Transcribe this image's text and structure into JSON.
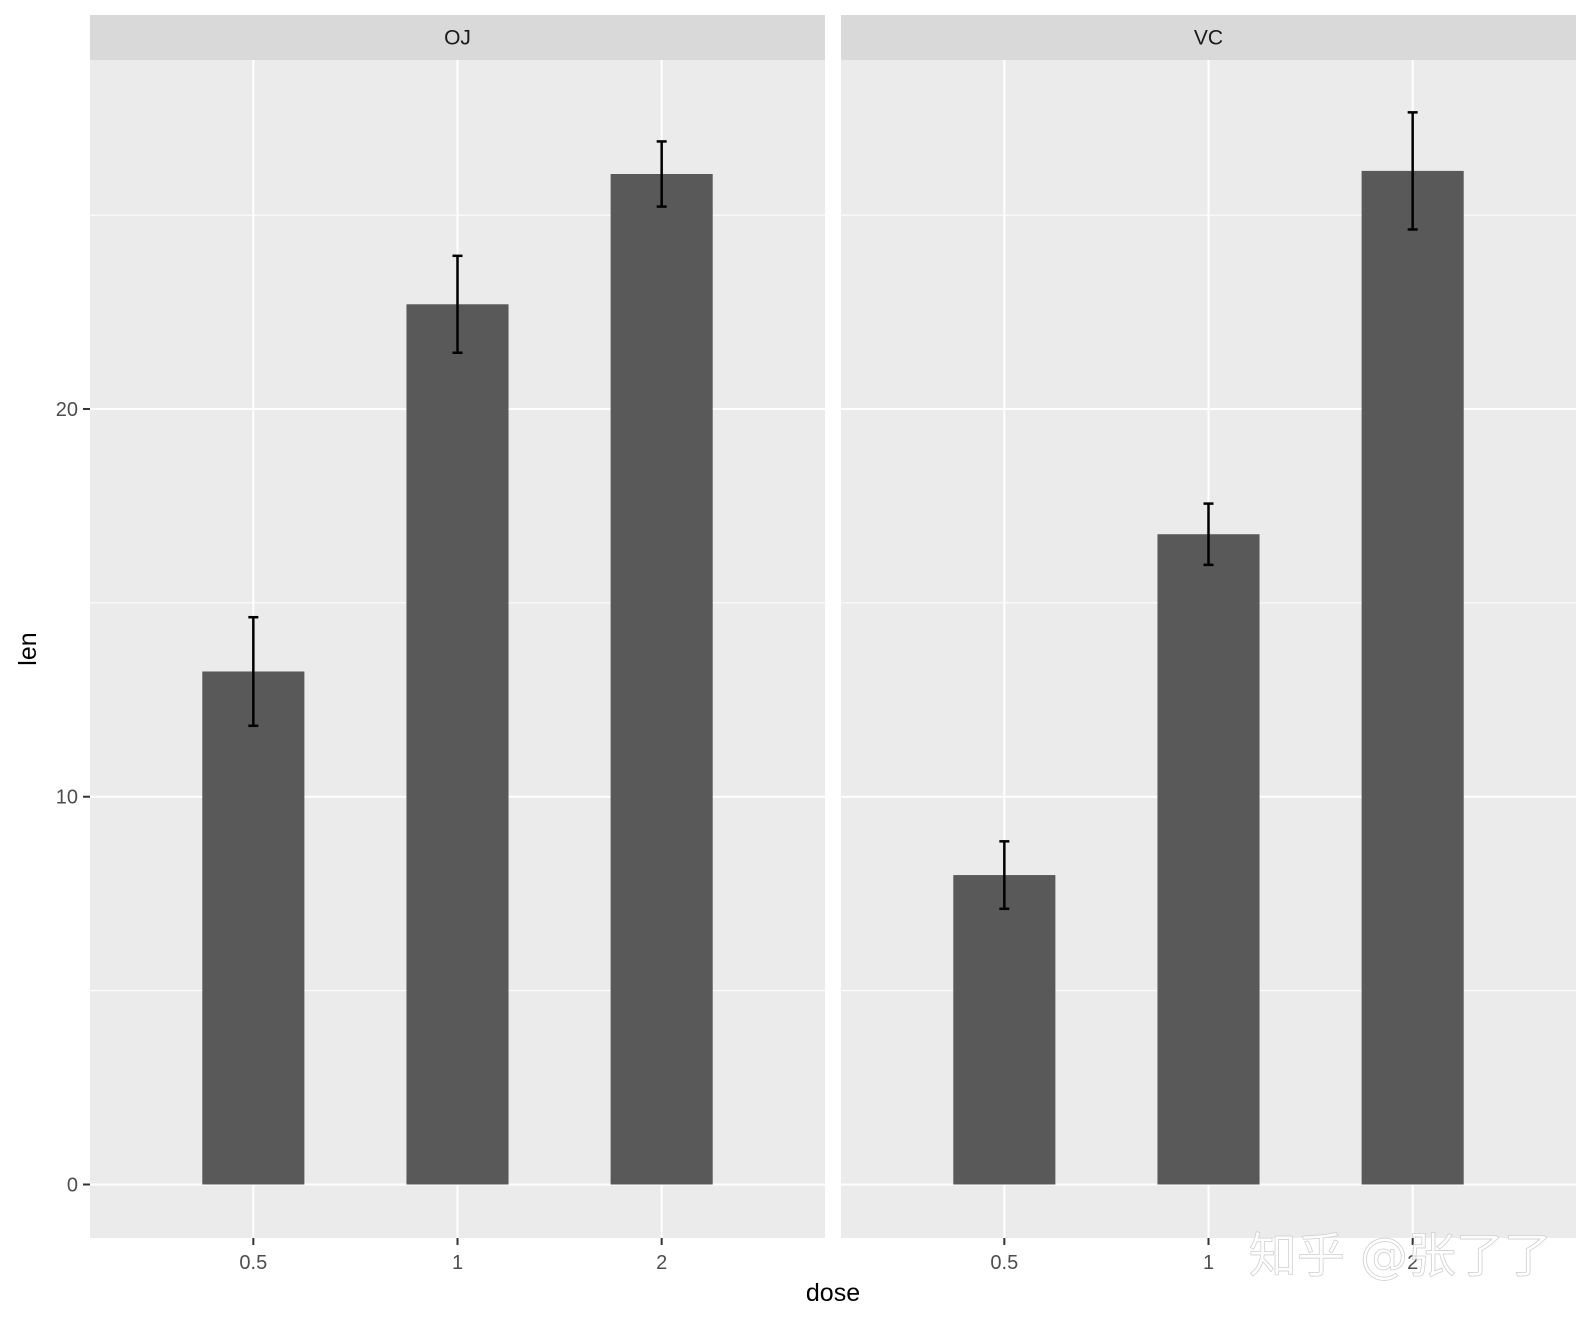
{
  "chart_data": {
    "type": "bar",
    "facet_by": "supp",
    "panels": [
      {
        "label": "OJ",
        "categories": [
          "0.5",
          "1",
          "2"
        ],
        "values": [
          13.23,
          22.7,
          26.06
        ],
        "error_low": [
          11.83,
          21.45,
          25.22
        ],
        "error_high": [
          14.63,
          23.95,
          26.9
        ]
      },
      {
        "label": "VC",
        "categories": [
          "0.5",
          "1",
          "2"
        ],
        "values": [
          7.98,
          16.77,
          26.14
        ],
        "error_low": [
          7.11,
          15.98,
          24.63
        ],
        "error_high": [
          8.85,
          17.56,
          27.65
        ]
      }
    ],
    "xlabel": "dose",
    "ylabel": "len",
    "yticks": [
      0,
      10,
      20
    ],
    "ylim": [
      -1.38,
      29.0
    ],
    "grid": true,
    "legend": "none",
    "watermark": "知乎 @张了了",
    "colors": {
      "bar": "#595959",
      "panel_background": "#ebebeb",
      "strip_background": "#d9d9d9",
      "grid": "#ffffff",
      "errorbar": "#000000"
    }
  }
}
